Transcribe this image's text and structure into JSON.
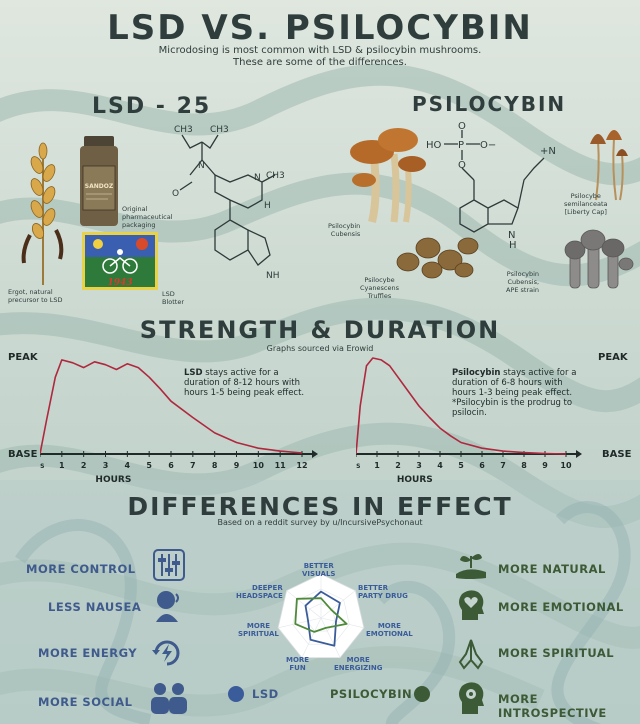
{
  "header": {
    "title": "LSD VS. PSILOCYBIN",
    "subtitle_line1": "Microdosing is most common with LSD & psilocybin mushrooms.",
    "subtitle_line2": "These are some of the differences."
  },
  "lsd": {
    "heading": "LSD - 25",
    "ergot_caption_1": "Ergot, natural",
    "ergot_caption_2": "precursor to LSD",
    "packaging_caption_1": "Original",
    "packaging_caption_2": "pharmaceutical",
    "packaging_caption_3": "packaging",
    "bottle_text": "SANDOZ",
    "blotter_caption_1": "LSD",
    "blotter_caption_2": "Blotter",
    "blotter_year": "1943",
    "molecule": {
      "ch3_a": "CH3",
      "ch3_b": "CH3",
      "n": "N",
      "o": "O",
      "n_ring": "N",
      "ch3_ring": "CH3",
      "h": "H",
      "nh": "NH"
    }
  },
  "psilocybin": {
    "heading": "PSILOCYBIN",
    "cubensis_caption_1": "Psilocybin",
    "cubensis_caption_2": "Cubensis",
    "cyanescens_caption_1": "Psilocybe",
    "cyanescens_caption_2": "Cyanescens",
    "cyanescens_caption_3": "Truffles",
    "semilanceata_caption_1": "Psilocybe",
    "semilanceata_caption_2": "semilanceata",
    "semilanceata_caption_3": "[Liberty Cap]",
    "ape_caption_1": "Psilocybin",
    "ape_caption_2": "Cubensis,",
    "ape_caption_3": "APE strain",
    "molecule": {
      "ho": "HO",
      "p": "P",
      "o_top": "O",
      "o_minus": "O−",
      "o_left": "O",
      "n_plus": "+N",
      "nh": "N",
      "h": "H"
    }
  },
  "strength": {
    "title": "STRENGTH & DURATION",
    "subtitle": "Graphs sourced via Erowid",
    "peak_label": "PEAK",
    "base_label": "BASE",
    "lsd_note_bold": "LSD",
    "lsd_note_rest": " stays active for a duration of 8-12 hours with hours 1-5 being peak effect.",
    "psilo_note_bold": "Psilocybin",
    "psilo_note_rest": " stays active for a duration of 6-8 hours with hours 1-3 being peak effect. *Psilocybin is the prodrug to psilocin.",
    "hours_label": "HOURS",
    "tick_start": "RS"
  },
  "chart_data": [
    {
      "type": "line",
      "name": "LSD",
      "x_ticks": [
        "RS",
        "1",
        "2",
        "3",
        "4",
        "5",
        "6",
        "7",
        "8",
        "9",
        "10",
        "11",
        "12"
      ],
      "xlim": [
        0,
        12
      ],
      "ylim": [
        "BASE",
        "PEAK"
      ],
      "x": [
        0,
        0.3,
        0.7,
        1.0,
        1.5,
        2.0,
        2.5,
        3.0,
        3.5,
        4.0,
        4.5,
        5.0,
        5.5,
        6.0,
        7.0,
        8.0,
        9.0,
        10.0,
        11.0,
        12.0
      ],
      "y": [
        0,
        0.35,
        0.8,
        0.98,
        0.95,
        0.9,
        0.96,
        0.93,
        0.88,
        0.94,
        0.9,
        0.8,
        0.68,
        0.55,
        0.38,
        0.22,
        0.12,
        0.06,
        0.03,
        0.01
      ],
      "color": "#b0283e"
    },
    {
      "type": "line",
      "name": "Psilocybin",
      "x_ticks": [
        "RS",
        "1",
        "2",
        "3",
        "4",
        "5",
        "6",
        "7",
        "8",
        "9",
        "10"
      ],
      "xlim": [
        0,
        10
      ],
      "ylim": [
        "BASE",
        "PEAK"
      ],
      "x": [
        0,
        0.2,
        0.5,
        0.8,
        1.2,
        1.6,
        2.0,
        2.5,
        3.0,
        3.5,
        4.0,
        4.5,
        5.0,
        6.0,
        7.0,
        8.0,
        9.0,
        10.0
      ],
      "y": [
        0,
        0.5,
        0.92,
        1.0,
        0.98,
        0.92,
        0.8,
        0.65,
        0.5,
        0.38,
        0.27,
        0.19,
        0.12,
        0.06,
        0.03,
        0.015,
        0.005,
        0
      ],
      "color": "#b0283e"
    },
    {
      "type": "radar",
      "axes": [
        "BETTER VISUALS",
        "BETTER PARTY DRUG",
        "MORE EMOTIONAL",
        "MORE ENERGIZING",
        "MORE FUN",
        "MORE SPIRITUAL",
        "DEEPER HEADSPACE"
      ],
      "series": [
        {
          "name": "LSD",
          "color": "#3b5c9a",
          "values": [
            0.6,
            0.55,
            0.35,
            0.7,
            0.55,
            0.3,
            0.45
          ]
        },
        {
          "name": "PSILOCYBIN",
          "color": "#4f8a3a",
          "values": [
            0.45,
            0.3,
            0.6,
            0.25,
            0.35,
            0.6,
            0.7
          ]
        }
      ]
    }
  ],
  "effects": {
    "title": "DIFFERENCES IN EFFECT",
    "subtitle": "Based on a reddit survey by u/IncursivePsychonaut",
    "lsd_items": [
      "MORE CONTROL",
      "LESS NAUSEA",
      "MORE ENERGY",
      "MORE SOCIAL"
    ],
    "lsd_icons": [
      "sliders-icon",
      "nausea-head-icon",
      "energy-cycle-icon",
      "group-people-icon"
    ],
    "psilo_items": [
      "MORE NATURAL",
      "MORE EMOTIONAL",
      "MORE SPIRITUAL",
      "MORE INTROSPECTIVE"
    ],
    "psilo_icons": [
      "plant-hand-icon",
      "heart-head-icon",
      "praying-hands-icon",
      "introspective-head-icon"
    ],
    "radar_labels": {
      "visuals": "BETTER VISUALS",
      "party": "BETTER PARTY DRUG",
      "emotional": "MORE EMOTIONAL",
      "energizing": "MORE ENERGIZING",
      "fun": "MORE FUN",
      "spiritual": "MORE SPIRITUAL",
      "headspace": "DEEPER HEADSPACE"
    },
    "legend_lsd": "LSD",
    "legend_psilo": "PSILOCYBIN",
    "colors": {
      "lsd": "#3b5c9a",
      "psilo": "#3c5a36"
    }
  }
}
